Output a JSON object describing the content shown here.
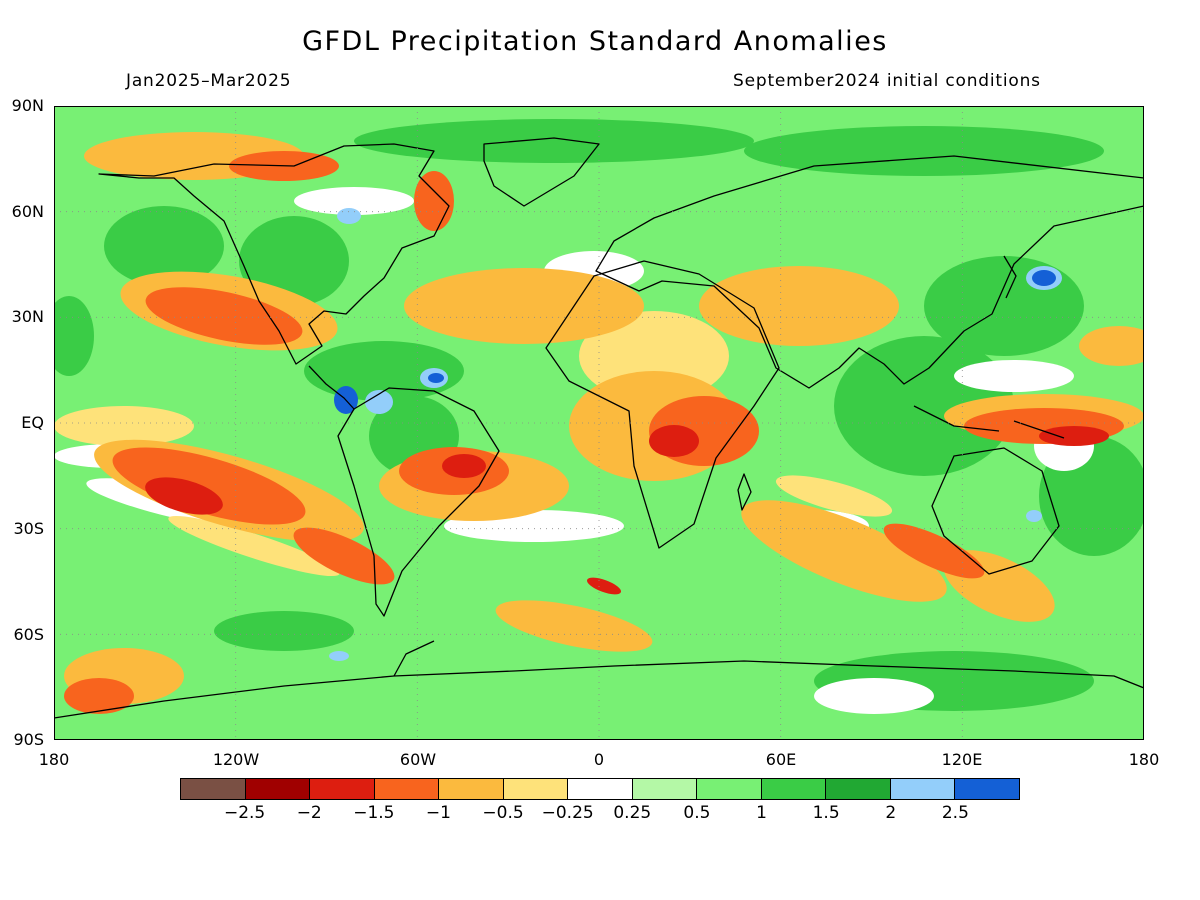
{
  "title": "GFDL Precipitation Standard Anomalies",
  "period": "Jan2025–Mar2025",
  "initial_conditions": "September2024 initial conditions",
  "lat_labels": [
    "90N",
    "60N",
    "30N",
    "EQ",
    "30S",
    "60S",
    "90S"
  ],
  "lon_labels": [
    "180",
    "120W",
    "60W",
    "0",
    "60E",
    "120E",
    "180"
  ],
  "legend": {
    "colors": [
      "#7a5044",
      "#a00000",
      "#dd1e10",
      "#f8641e",
      "#fbba3e",
      "#fee27a",
      "#ffffff",
      "#b4f8a6",
      "#78f074",
      "#3acc46",
      "#21a833",
      "#93cefa",
      "#1460d6"
    ],
    "labels": [
      "−2.5",
      "−2",
      "−1.5",
      "−1",
      "−0.5",
      "−0.25",
      "0.25",
      "0.5",
      "1",
      "1.5",
      "2",
      "2.5"
    ]
  }
}
